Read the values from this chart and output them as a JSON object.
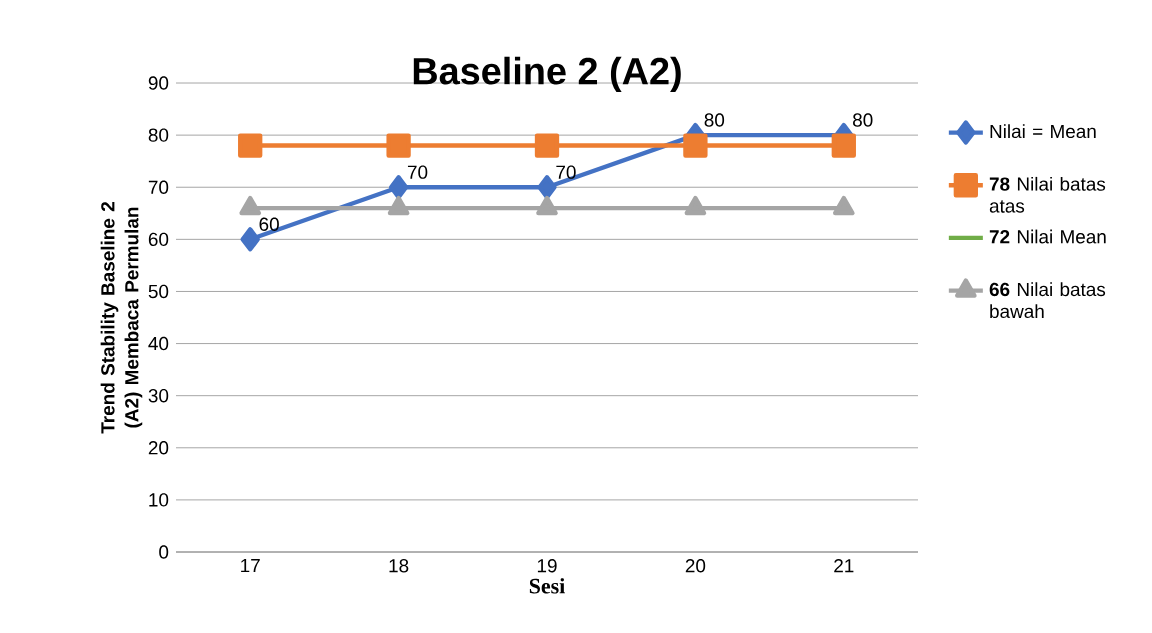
{
  "chart_data": {
    "type": "line",
    "title": "Baseline 2  (A2)",
    "xlabel": "Sesi",
    "ylabel": "Trend Stability Baseline 2  (A2) Membaca Permulan",
    "categories": [
      "17",
      "18",
      "19",
      "20",
      "21"
    ],
    "series": [
      {
        "name": "Nilai = Mean",
        "color": "#4472c4",
        "marker": "diamond",
        "values": [
          60,
          70,
          70,
          80,
          80
        ],
        "value_labels": [
          "60",
          "70",
          "70",
          "80",
          "80"
        ]
      },
      {
        "name": "**78** Nilai batas atas",
        "color": "#ed7d31",
        "marker": "square",
        "values": [
          78,
          78,
          78,
          78,
          78
        ]
      },
      {
        "name": "**72** Nilai Mean",
        "color": "#70ad47",
        "marker": "none",
        "values": [
          null,
          null,
          null,
          null,
          null
        ]
      },
      {
        "name": "**66** Nilai batas bawah",
        "color": "#a5a5a5",
        "marker": "triangle",
        "values": [
          66,
          66,
          66,
          66,
          66
        ]
      }
    ],
    "ylim": [
      0,
      90
    ],
    "yticks": [
      0,
      10,
      20,
      30,
      40,
      50,
      60,
      70,
      80,
      90
    ],
    "grid": "y",
    "legend": "right",
    "line_style": "solid"
  }
}
